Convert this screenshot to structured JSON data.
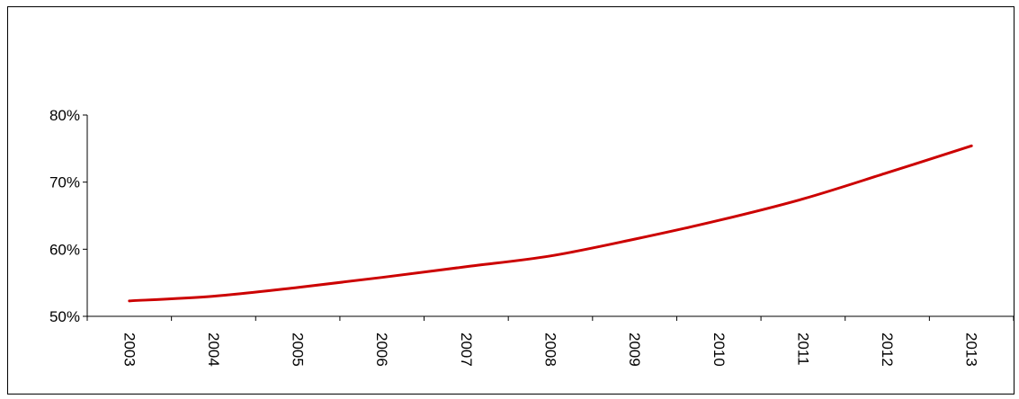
{
  "chart_data": {
    "type": "line",
    "title": "",
    "xlabel": "",
    "ylabel": "",
    "x": [
      "2003",
      "2004",
      "2005",
      "2006",
      "2007",
      "2008",
      "2009",
      "2010",
      "2011",
      "2012",
      "2013"
    ],
    "series": [
      {
        "values": [
          52.3,
          53.0,
          54.3,
          55.8,
          57.4,
          59.0,
          61.5,
          64.3,
          67.5,
          71.4,
          75.4
        ],
        "color": "#cc0000"
      }
    ],
    "y_ticks": [
      "50%",
      "60%",
      "70%",
      "80%"
    ],
    "y_tick_values": [
      50,
      60,
      70,
      80
    ],
    "ylim": [
      50,
      80
    ],
    "grid": false,
    "legend": "none",
    "axis_color": "#000000"
  }
}
